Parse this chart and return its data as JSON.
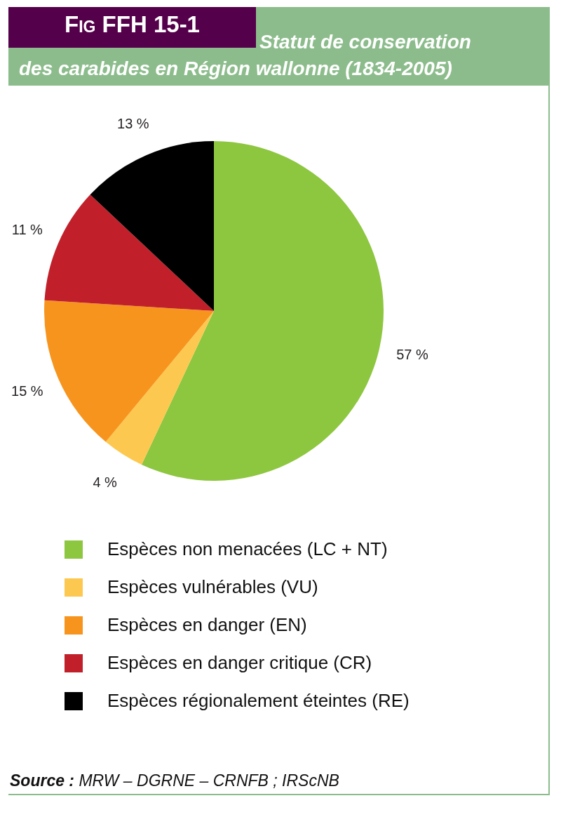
{
  "chart_data": {
    "type": "pie",
    "title": "Fig FFH 15-1",
    "subtitle": "Statut de conservation des carabides en Région wallonne (1834-2005)",
    "categories": [
      "Espèces non menacées (LC + NT)",
      "Espèces vulnérables (VU)",
      "Espèces en danger (EN)",
      "Espèces en danger critique (CR)",
      "Espèces régionalement éteintes (RE)"
    ],
    "values": [
      57,
      4,
      15,
      11,
      13
    ],
    "colors": [
      "#8dc63f",
      "#fdc84f",
      "#f7941d",
      "#c1202a",
      "#000000"
    ],
    "value_labels": [
      "57 %",
      "4 %",
      "15 %",
      "11 %",
      "13 %"
    ],
    "legend": "bottom",
    "annotations": [
      "Source : MRW – DGRNE – CRNFB ; IRScNB"
    ]
  }
}
